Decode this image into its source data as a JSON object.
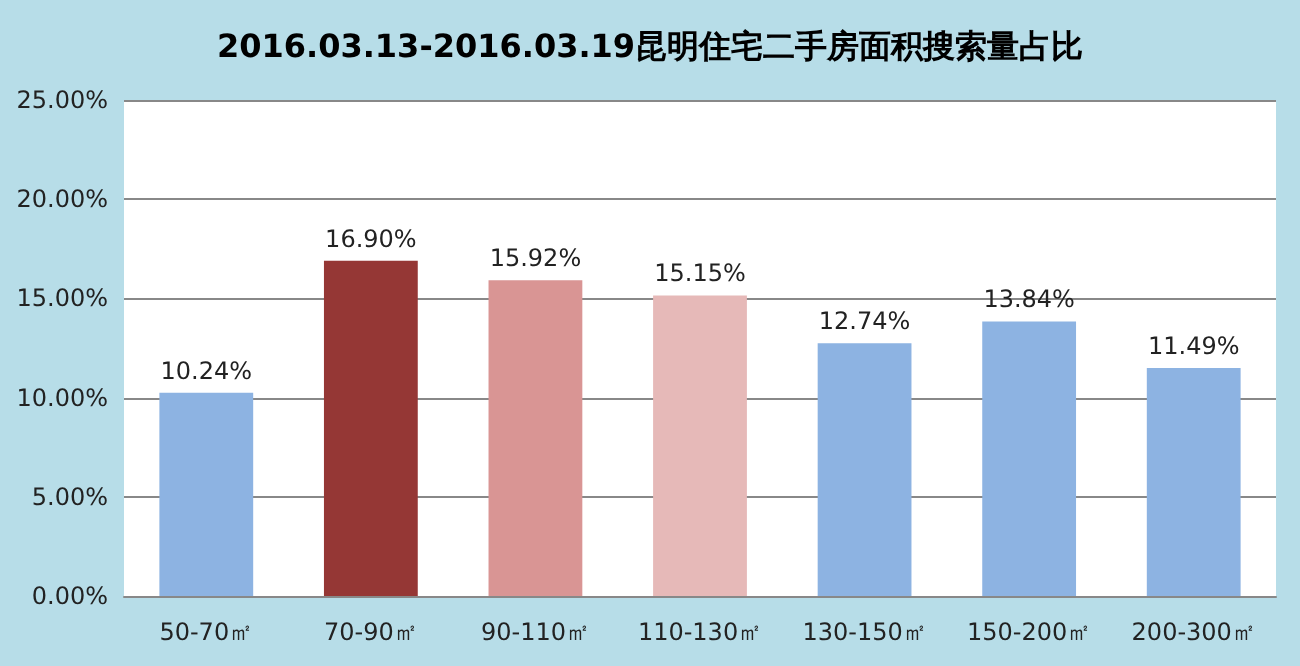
{
  "chart_data": {
    "type": "bar",
    "title": "2016.03.13-2016.03.19昆明住宅二手房面积搜索量占比",
    "categories": [
      "50-70㎡",
      "70-90㎡",
      "90-110㎡",
      "110-130㎡",
      "130-150㎡",
      "150-200㎡",
      "200-300㎡"
    ],
    "values": [
      10.24,
      16.9,
      15.92,
      15.15,
      12.74,
      13.84,
      11.49
    ],
    "colors": [
      "#8db3e2",
      "#953735",
      "#d99594",
      "#e6b9b8",
      "#8db3e2",
      "#8db3e2",
      "#8db3e2"
    ],
    "value_labels": [
      "10.24%",
      "16.90%",
      "15.92%",
      "15.15%",
      "12.74%",
      "13.84%",
      "11.49%"
    ],
    "ylim": [
      0,
      25
    ],
    "yticks": [
      {
        "value": 0,
        "label": "0.00%"
      },
      {
        "value": 5,
        "label": "5.00%"
      },
      {
        "value": 10,
        "label": "10.00%"
      },
      {
        "value": 15,
        "label": "15.00%"
      },
      {
        "value": 20,
        "label": "20.00%"
      },
      {
        "value": 25,
        "label": "25.00%"
      }
    ],
    "grid": "y"
  }
}
